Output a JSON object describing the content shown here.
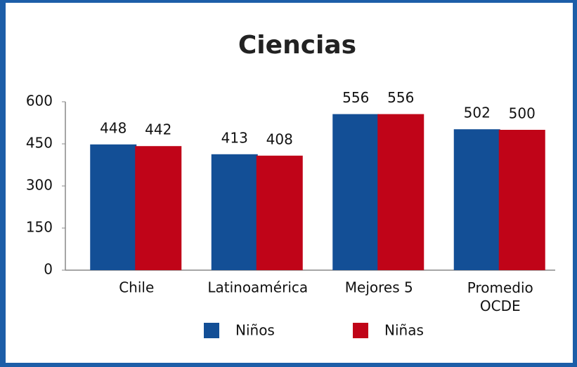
{
  "chart_data": {
    "type": "bar",
    "title": "Ciencias",
    "categories": [
      "Chile",
      "Latinoamérica",
      "Mejores 5",
      "Promedio OCDE"
    ],
    "series": [
      {
        "name": "Niños",
        "color": "#134f96",
        "values": [
          448,
          413,
          556,
          502
        ]
      },
      {
        "name": "Niñas",
        "color": "#c00418",
        "values": [
          442,
          408,
          556,
          500
        ]
      }
    ],
    "ylim": [
      0,
      600
    ],
    "yticks": [
      0,
      150,
      300,
      450,
      600
    ],
    "grid": false,
    "legend": "bottom"
  }
}
